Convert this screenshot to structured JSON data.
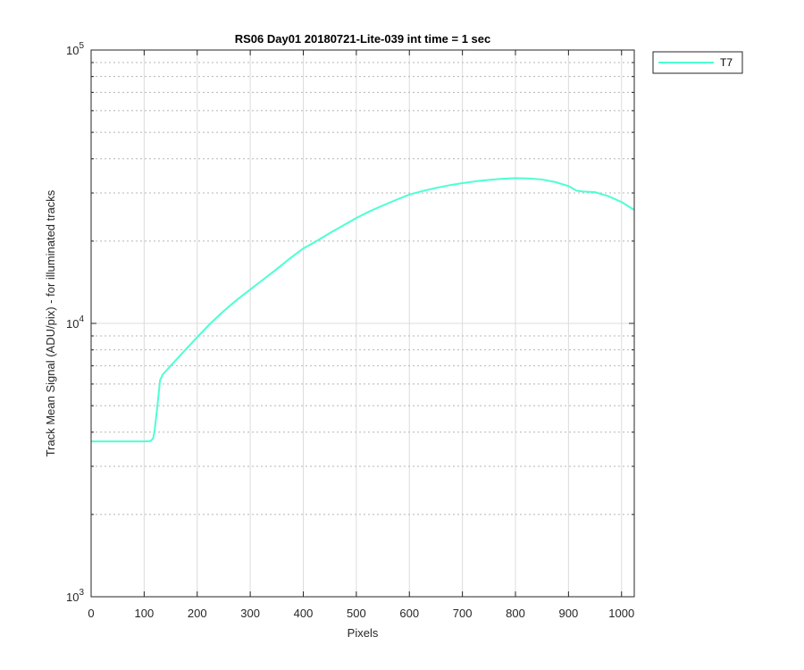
{
  "chart_data": {
    "type": "line",
    "title": "RS06 Day01 20180721-Lite-039 int time = 1 sec",
    "xlabel": "Pixels",
    "ylabel": "Track Mean Signal (ADU/pix) - for illuminated tracks",
    "xlim": [
      0,
      1024
    ],
    "ylim": [
      1000,
      100000
    ],
    "yscale": "log",
    "x_ticks": [
      "0",
      "100",
      "200",
      "300",
      "400",
      "500",
      "600",
      "700",
      "800",
      "900",
      "1000"
    ],
    "y_ticks": [
      {
        "base": "10",
        "exp": "3"
      },
      {
        "base": "10",
        "exp": "4"
      },
      {
        "base": "10",
        "exp": "5"
      }
    ],
    "grid": true,
    "legend_position": "outside-top-right",
    "series": [
      {
        "name": "T7",
        "color": "#4dffd2",
        "x": [
          0,
          50,
          100,
          112,
          117,
          120,
          125,
          130,
          135,
          150,
          175,
          200,
          225,
          250,
          275,
          300,
          325,
          350,
          375,
          400,
          425,
          450,
          475,
          500,
          525,
          550,
          575,
          600,
          625,
          650,
          675,
          700,
          725,
          750,
          775,
          800,
          825,
          850,
          875,
          900,
          915,
          925,
          950,
          975,
          1000,
          1024
        ],
        "y": [
          3700,
          3700,
          3700,
          3710,
          3800,
          4100,
          5000,
          6200,
          6500,
          7000,
          7900,
          8900,
          10000,
          11100,
          12200,
          13300,
          14500,
          15800,
          17300,
          18800,
          20000,
          21400,
          22800,
          24300,
          25700,
          27000,
          28300,
          29600,
          30500,
          31300,
          32000,
          32600,
          33100,
          33500,
          33800,
          34000,
          33900,
          33600,
          32900,
          31800,
          30600,
          30400,
          30200,
          29200,
          27800,
          26000
        ]
      }
    ]
  }
}
